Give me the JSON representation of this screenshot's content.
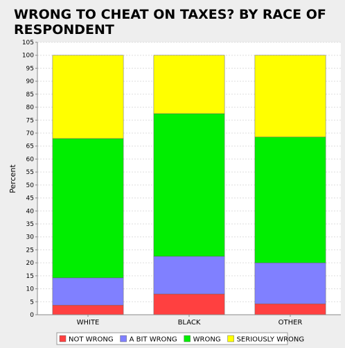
{
  "chart_data": {
    "type": "bar",
    "stacked": true,
    "title": "WRONG TO CHEAT ON TAXES? BY RACE OF RESPONDENT",
    "title_lines": [
      "WRONG TO CHEAT ON TAXES? BY RACE OF",
      "RESPONDENT"
    ],
    "xlabel": "",
    "ylabel": "Percent",
    "ylim": [
      0,
      105
    ],
    "ytick_step": 5,
    "grid": true,
    "legend_position": "bottom",
    "categories": [
      "WHITE",
      "BLACK",
      "OTHER"
    ],
    "series": [
      {
        "name": "NOT WRONG",
        "color": "#ff4040",
        "values": [
          3.7,
          8.0,
          4.2
        ]
      },
      {
        "name": "A BIT WRONG",
        "color": "#8080ff",
        "values": [
          10.5,
          14.5,
          15.8
        ]
      },
      {
        "name": "WRONG",
        "color": "#00ee00",
        "values": [
          53.7,
          55.0,
          48.5
        ]
      },
      {
        "name": "SERIOUSLY WRONG",
        "color": "#ffff00",
        "values": [
          32.1,
          22.5,
          31.5
        ]
      }
    ]
  }
}
